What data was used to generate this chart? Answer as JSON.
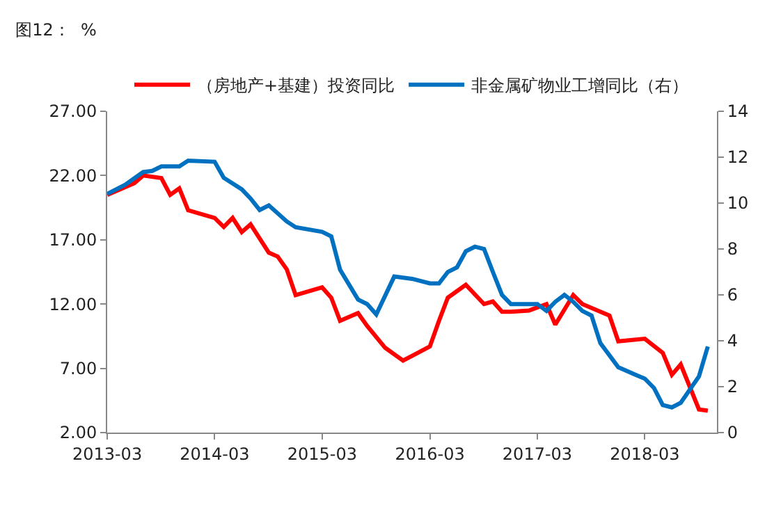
{
  "chart_data": {
    "type": "line",
    "title": "图12：  %",
    "x": [
      "2013-03",
      "2013-06",
      "2013-07",
      "2013-09",
      "2013-10",
      "2013-11",
      "2013-12",
      "2014-03",
      "2014-04",
      "2014-05",
      "2014-06",
      "2014-07",
      "2014-09",
      "2014-10",
      "2014-11",
      "2014-12",
      "2015-03",
      "2015-04",
      "2015-05",
      "2015-07",
      "2015-08",
      "2015-10",
      "2015-12",
      "2016-03",
      "2016-04",
      "2016-05",
      "2016-07",
      "2016-09",
      "2016-10",
      "2016-11",
      "2016-12",
      "2017-02",
      "2017-04",
      "2017-05",
      "2017-07",
      "2017-08",
      "2017-11",
      "2017-12",
      "2018-03",
      "2018-05",
      "2018-06",
      "2018-07",
      "2018-09",
      "2018-10"
    ],
    "series": [
      {
        "name": "（房地产+基建）投资同比",
        "color": "#ff0000",
        "values": [
          20.5,
          21.4,
          22.0,
          21.8,
          20.5,
          21.0,
          19.3,
          18.7,
          18.0,
          18.7,
          17.6,
          18.2,
          16.0,
          15.7,
          14.7,
          12.7,
          13.3,
          12.5,
          10.7,
          11.3,
          10.3,
          8.6,
          7.6,
          8.7,
          10.7,
          12.5,
          13.5,
          12.0,
          12.2,
          11.4,
          11.4,
          11.5,
          12.0,
          10.4,
          12.7,
          12.0,
          11.1,
          9.1,
          9.3,
          8.2,
          6.5,
          7.3,
          3.8,
          3.7
        ]
      },
      {
        "name": "非金属矿物业工增同比（右）",
        "color": "#0070c0",
        "axis": "y2",
        "x": [
          "2013-03",
          "2013-05",
          "2013-07",
          "2013-08",
          "2013-09",
          "2013-11",
          "2013-12",
          "2014-03",
          "2014-04",
          "2014-06",
          "2014-07",
          "2014-08",
          "2014-09",
          "2014-11",
          "2014-12",
          "2015-03",
          "2015-04",
          "2015-05",
          "2015-07",
          "2015-08",
          "2015-09",
          "2015-11",
          "2016-01",
          "2016-03",
          "2016-04",
          "2016-05",
          "2016-06",
          "2016-07",
          "2016-08",
          "2016-09",
          "2016-10",
          "2016-11",
          "2016-12",
          "2017-03",
          "2017-04",
          "2017-05",
          "2017-06",
          "2017-07",
          "2017-08",
          "2017-09",
          "2017-10",
          "2017-12",
          "2018-02",
          "2018-03",
          "2018-04",
          "2018-05",
          "2018-06",
          "2018-07",
          "2018-09",
          "2018-10"
        ],
        "values": [
          10.4,
          10.8,
          11.35,
          11.4,
          11.6,
          11.6,
          11.85,
          11.8,
          11.1,
          10.6,
          10.2,
          9.7,
          9.9,
          9.2,
          8.95,
          8.75,
          8.55,
          7.1,
          5.8,
          5.6,
          5.15,
          6.8,
          6.7,
          6.5,
          6.5,
          7.0,
          7.2,
          7.9,
          8.1,
          8.0,
          7.0,
          6.0,
          5.6,
          5.6,
          5.3,
          5.7,
          6.0,
          5.7,
          5.3,
          5.1,
          3.9,
          2.85,
          2.5,
          2.35,
          1.95,
          1.2,
          1.1,
          1.3,
          2.45,
          3.75
        ]
      }
    ],
    "xlim": [
      "2013-03",
      "2018-11"
    ],
    "xticks": [
      "2013-03",
      "2014-03",
      "2015-03",
      "2016-03",
      "2017-03",
      "2018-03"
    ],
    "ylim": [
      2,
      27
    ],
    "yticks": [
      {
        "value": 2,
        "label": "2.00"
      },
      {
        "value": 7,
        "label": "7.00"
      },
      {
        "value": 12,
        "label": "12.00"
      },
      {
        "value": 17,
        "label": "17.00"
      },
      {
        "value": 22,
        "label": "22.00"
      },
      {
        "value": 27,
        "label": "27.00"
      }
    ],
    "y2lim": [
      0,
      14
    ],
    "y2ticks": [
      0,
      2,
      4,
      6,
      8,
      10,
      12,
      14
    ],
    "legend": "top",
    "marker": "none",
    "line_style": "solid"
  }
}
